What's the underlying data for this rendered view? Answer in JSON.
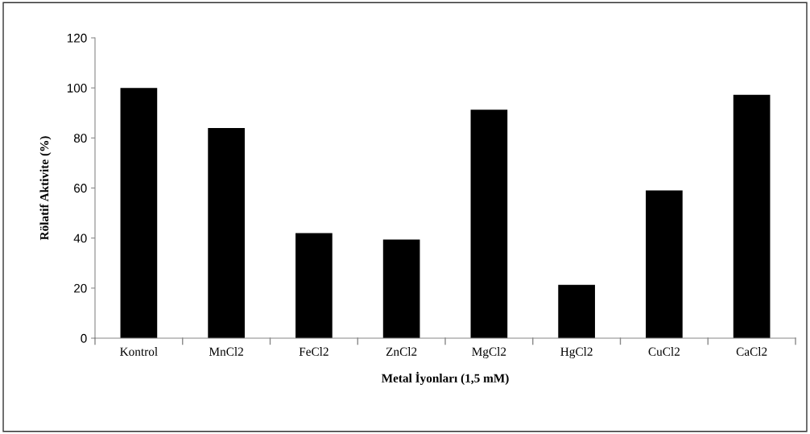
{
  "chart_data": {
    "type": "bar",
    "xlabel": "Metal İyonları (1,5 mM)",
    "ylabel": "Rölatif Aktivite (%)",
    "categories": [
      "Kontrol",
      "MnCl2",
      "FeCl2",
      "ZnCl2",
      "MgCl2",
      "HgCl2",
      "CuCl2",
      "CaCl2"
    ],
    "values": [
      100,
      84,
      42,
      39.4,
      91.3,
      21.3,
      59,
      97.2
    ],
    "color": "#000000",
    "ylim": [
      0,
      120
    ],
    "yticks": [
      0,
      20,
      40,
      60,
      80,
      100,
      120
    ],
    "grid": false,
    "legend": false
  }
}
